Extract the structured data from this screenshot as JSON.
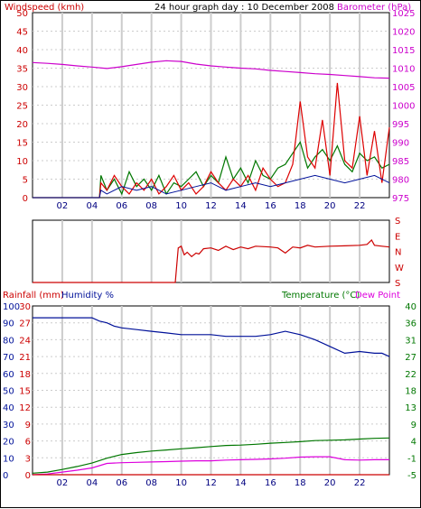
{
  "page": {
    "title": "24 hour graph day : 10 December 2008"
  },
  "colors": {
    "wind": "#dd0000",
    "gust": "#007700",
    "baro": "#cc00cc",
    "humidity": "#001199",
    "temperature": "#007700",
    "dewpoint": "#dd00dd",
    "rain": "#cc0000",
    "winddir": "#cc0000",
    "grid": "#cccccc",
    "axis": "#000000"
  },
  "time_ticks": [
    "02",
    "04",
    "06",
    "08",
    "10",
    "12",
    "14",
    "16",
    "18",
    "20",
    "22"
  ],
  "chart_data": [
    {
      "type": "line",
      "name": "wind-barometer",
      "left_axis": {
        "label": "Windspeed (kmh)",
        "ticks": [
          "0",
          "5",
          "10",
          "15",
          "20",
          "25",
          "30",
          "35",
          "40",
          "45",
          "50"
        ],
        "ylim": [
          0,
          50
        ]
      },
      "right_axis": {
        "label": "Barometer (hPa)",
        "ticks": [
          "975",
          "980",
          "985",
          "990",
          "995",
          "1000",
          "1005",
          "1010",
          "1015",
          "1020",
          "1025"
        ],
        "ylim": [
          975,
          1025
        ]
      },
      "x": [
        0,
        24
      ],
      "series": [
        {
          "name": "windspeed",
          "color": "wind",
          "x": [
            0,
            4.5,
            4.6,
            5,
            5.5,
            6,
            6.5,
            7,
            7.5,
            8,
            8.5,
            9,
            9.5,
            10,
            10.5,
            11,
            11.5,
            12,
            12.5,
            13,
            13.5,
            14,
            14.5,
            15,
            15.5,
            16,
            16.5,
            17,
            17.5,
            18,
            18.5,
            19,
            19.5,
            20,
            20.5,
            21,
            21.5,
            22,
            22.5,
            23,
            23.5,
            24
          ],
          "y": [
            0,
            0,
            4,
            2,
            6,
            3,
            1,
            4,
            2,
            5,
            1,
            3,
            6,
            2,
            4,
            1,
            3,
            7,
            4,
            2,
            5,
            3,
            6,
            2,
            8,
            5,
            3,
            4,
            9,
            26,
            11,
            8,
            21,
            6,
            31,
            10,
            8,
            22,
            6,
            18,
            4,
            19
          ]
        },
        {
          "name": "gust",
          "color": "gust",
          "x": [
            0,
            4.5,
            4.6,
            5,
            5.5,
            6,
            6.5,
            7,
            7.5,
            8,
            8.5,
            9,
            9.5,
            10,
            10.5,
            11,
            11.5,
            12,
            12.5,
            13,
            13.5,
            14,
            14.5,
            15,
            15.5,
            16,
            16.5,
            17,
            17.5,
            18,
            18.5,
            19,
            19.5,
            20,
            20.5,
            21,
            21.5,
            22,
            22.5,
            23,
            23.5,
            24
          ],
          "y": [
            0,
            0,
            6,
            2,
            5,
            1,
            7,
            3,
            5,
            2,
            6,
            1,
            4,
            3,
            5,
            7,
            3,
            6,
            4,
            11,
            5,
            8,
            4,
            10,
            6,
            5,
            8,
            9,
            12,
            15,
            8,
            11,
            13,
            10,
            14,
            9,
            7,
            12,
            10,
            11,
            8,
            9
          ]
        },
        {
          "name": "avgwind",
          "color": "humidity",
          "x": [
            0,
            4.5,
            4.6,
            5,
            6,
            7,
            8,
            9,
            10,
            11,
            12,
            13,
            14,
            15,
            16,
            17,
            18,
            19,
            20,
            21,
            22,
            23,
            24
          ],
          "y": [
            0,
            0,
            2,
            1,
            3,
            2,
            3,
            1,
            2,
            3,
            4,
            2,
            3,
            4,
            3,
            4,
            5,
            6,
            5,
            4,
            5,
            6,
            4
          ]
        },
        {
          "name": "barometer",
          "color": "baro",
          "x": [
            0,
            1,
            2,
            3,
            4,
            5,
            6,
            7,
            8,
            9,
            10,
            11,
            12,
            13,
            14,
            15,
            16,
            17,
            18,
            19,
            20,
            21,
            22,
            23,
            24
          ],
          "y": [
            1011.5,
            1011.3,
            1011,
            1010.6,
            1010.3,
            1009.9,
            1010.4,
            1011,
            1011.6,
            1012,
            1011.8,
            1011.1,
            1010.6,
            1010.3,
            1010,
            1009.8,
            1009.4,
            1009.1,
            1008.8,
            1008.5,
            1008.3,
            1008,
            1007.7,
            1007.4,
            1007.3
          ]
        }
      ]
    },
    {
      "type": "line",
      "name": "wind-direction",
      "axis": {
        "ticks": [
          "S",
          "E",
          "N",
          "W",
          "S"
        ],
        "ylim": [
          0,
          360
        ]
      },
      "x": [
        0,
        24
      ],
      "series": [
        {
          "name": "direction",
          "color": "winddir",
          "x": [
            0,
            9.6,
            9.8,
            10,
            10.2,
            10.4,
            10.7,
            11,
            11.2,
            11.5,
            12,
            12.5,
            13,
            13.5,
            14,
            14.5,
            15,
            16,
            16.5,
            17,
            17.5,
            18,
            18.5,
            19,
            20,
            21,
            22,
            22.5,
            22.8,
            23,
            23.5,
            24
          ],
          "y": [
            0,
            0,
            200,
            210,
            160,
            175,
            150,
            170,
            165,
            195,
            200,
            185,
            210,
            190,
            205,
            195,
            210,
            205,
            200,
            170,
            205,
            200,
            215,
            205,
            210,
            212,
            215,
            220,
            245,
            215,
            210,
            205
          ]
        }
      ]
    },
    {
      "type": "line",
      "name": "temperature-humidity",
      "left_axis": {
        "label": "Rainfall (mm) Humidity %",
        "rain_ticks": [
          "0",
          "3",
          "6",
          "9",
          "12",
          "15",
          "18",
          "21",
          "24",
          "27",
          "30"
        ],
        "humidity_ticks": [
          "0",
          "10",
          "20",
          "30",
          "40",
          "50",
          "60",
          "70",
          "80",
          "90",
          "100"
        ],
        "ylim": [
          0,
          100
        ]
      },
      "right_axis": {
        "label": "Temperature (°C)Dew Point",
        "ticks": [
          "-5",
          "-1",
          "4",
          "9",
          "13",
          "18",
          "22",
          "27",
          "31",
          "36",
          "40"
        ],
        "ylim": [
          -5,
          40
        ]
      },
      "x": [
        0,
        24
      ],
      "series": [
        {
          "name": "humidity",
          "color": "humidity",
          "x": [
            0,
            2,
            4,
            4.5,
            5,
            5.5,
            6,
            7,
            8,
            9,
            10,
            11,
            12,
            13,
            14,
            15,
            16,
            17,
            17.5,
            18,
            19,
            20,
            21,
            22,
            23,
            23.5,
            24
          ],
          "y": [
            93,
            93,
            93,
            91,
            90,
            88,
            87,
            86,
            85,
            84,
            83,
            83,
            83,
            82,
            82,
            82,
            83,
            85,
            84,
            83,
            80,
            76,
            72,
            73,
            72,
            72,
            70
          ]
        },
        {
          "name": "temperature",
          "color": "temperature",
          "x": [
            0,
            1,
            2,
            3,
            4,
            5,
            6,
            7,
            8,
            9,
            10,
            11,
            12,
            13,
            14,
            15,
            16,
            17,
            18,
            19,
            20,
            21,
            22,
            23,
            24
          ],
          "y": [
            -4.6,
            -4.3,
            -3.6,
            -2.8,
            -1.9,
            -0.6,
            0.4,
            0.9,
            1.3,
            1.6,
            1.9,
            2.2,
            2.5,
            2.8,
            2.9,
            3.1,
            3.4,
            3.6,
            3.8,
            4.1,
            4.2,
            4.3,
            4.5,
            4.7,
            4.8
          ]
        },
        {
          "name": "dewpoint",
          "color": "dewpoint",
          "x": [
            0,
            1,
            2,
            3,
            4,
            5,
            6,
            7,
            8,
            9,
            10,
            11,
            12,
            13,
            14,
            15,
            16,
            17,
            18,
            19,
            20,
            21,
            22,
            23,
            24
          ],
          "y": [
            -5,
            -4.8,
            -4.3,
            -3.8,
            -3.2,
            -2.0,
            -1.8,
            -1.7,
            -1.6,
            -1.5,
            -1.4,
            -1.3,
            -1.3,
            -1.1,
            -1.0,
            -0.9,
            -0.8,
            -0.6,
            -0.3,
            -0.2,
            -0.2,
            -1.0,
            -1.1,
            -1.0,
            -1.0
          ]
        },
        {
          "name": "rainfall",
          "color": "rain",
          "x": [
            0,
            24
          ],
          "y": [
            0,
            0
          ]
        }
      ]
    }
  ]
}
